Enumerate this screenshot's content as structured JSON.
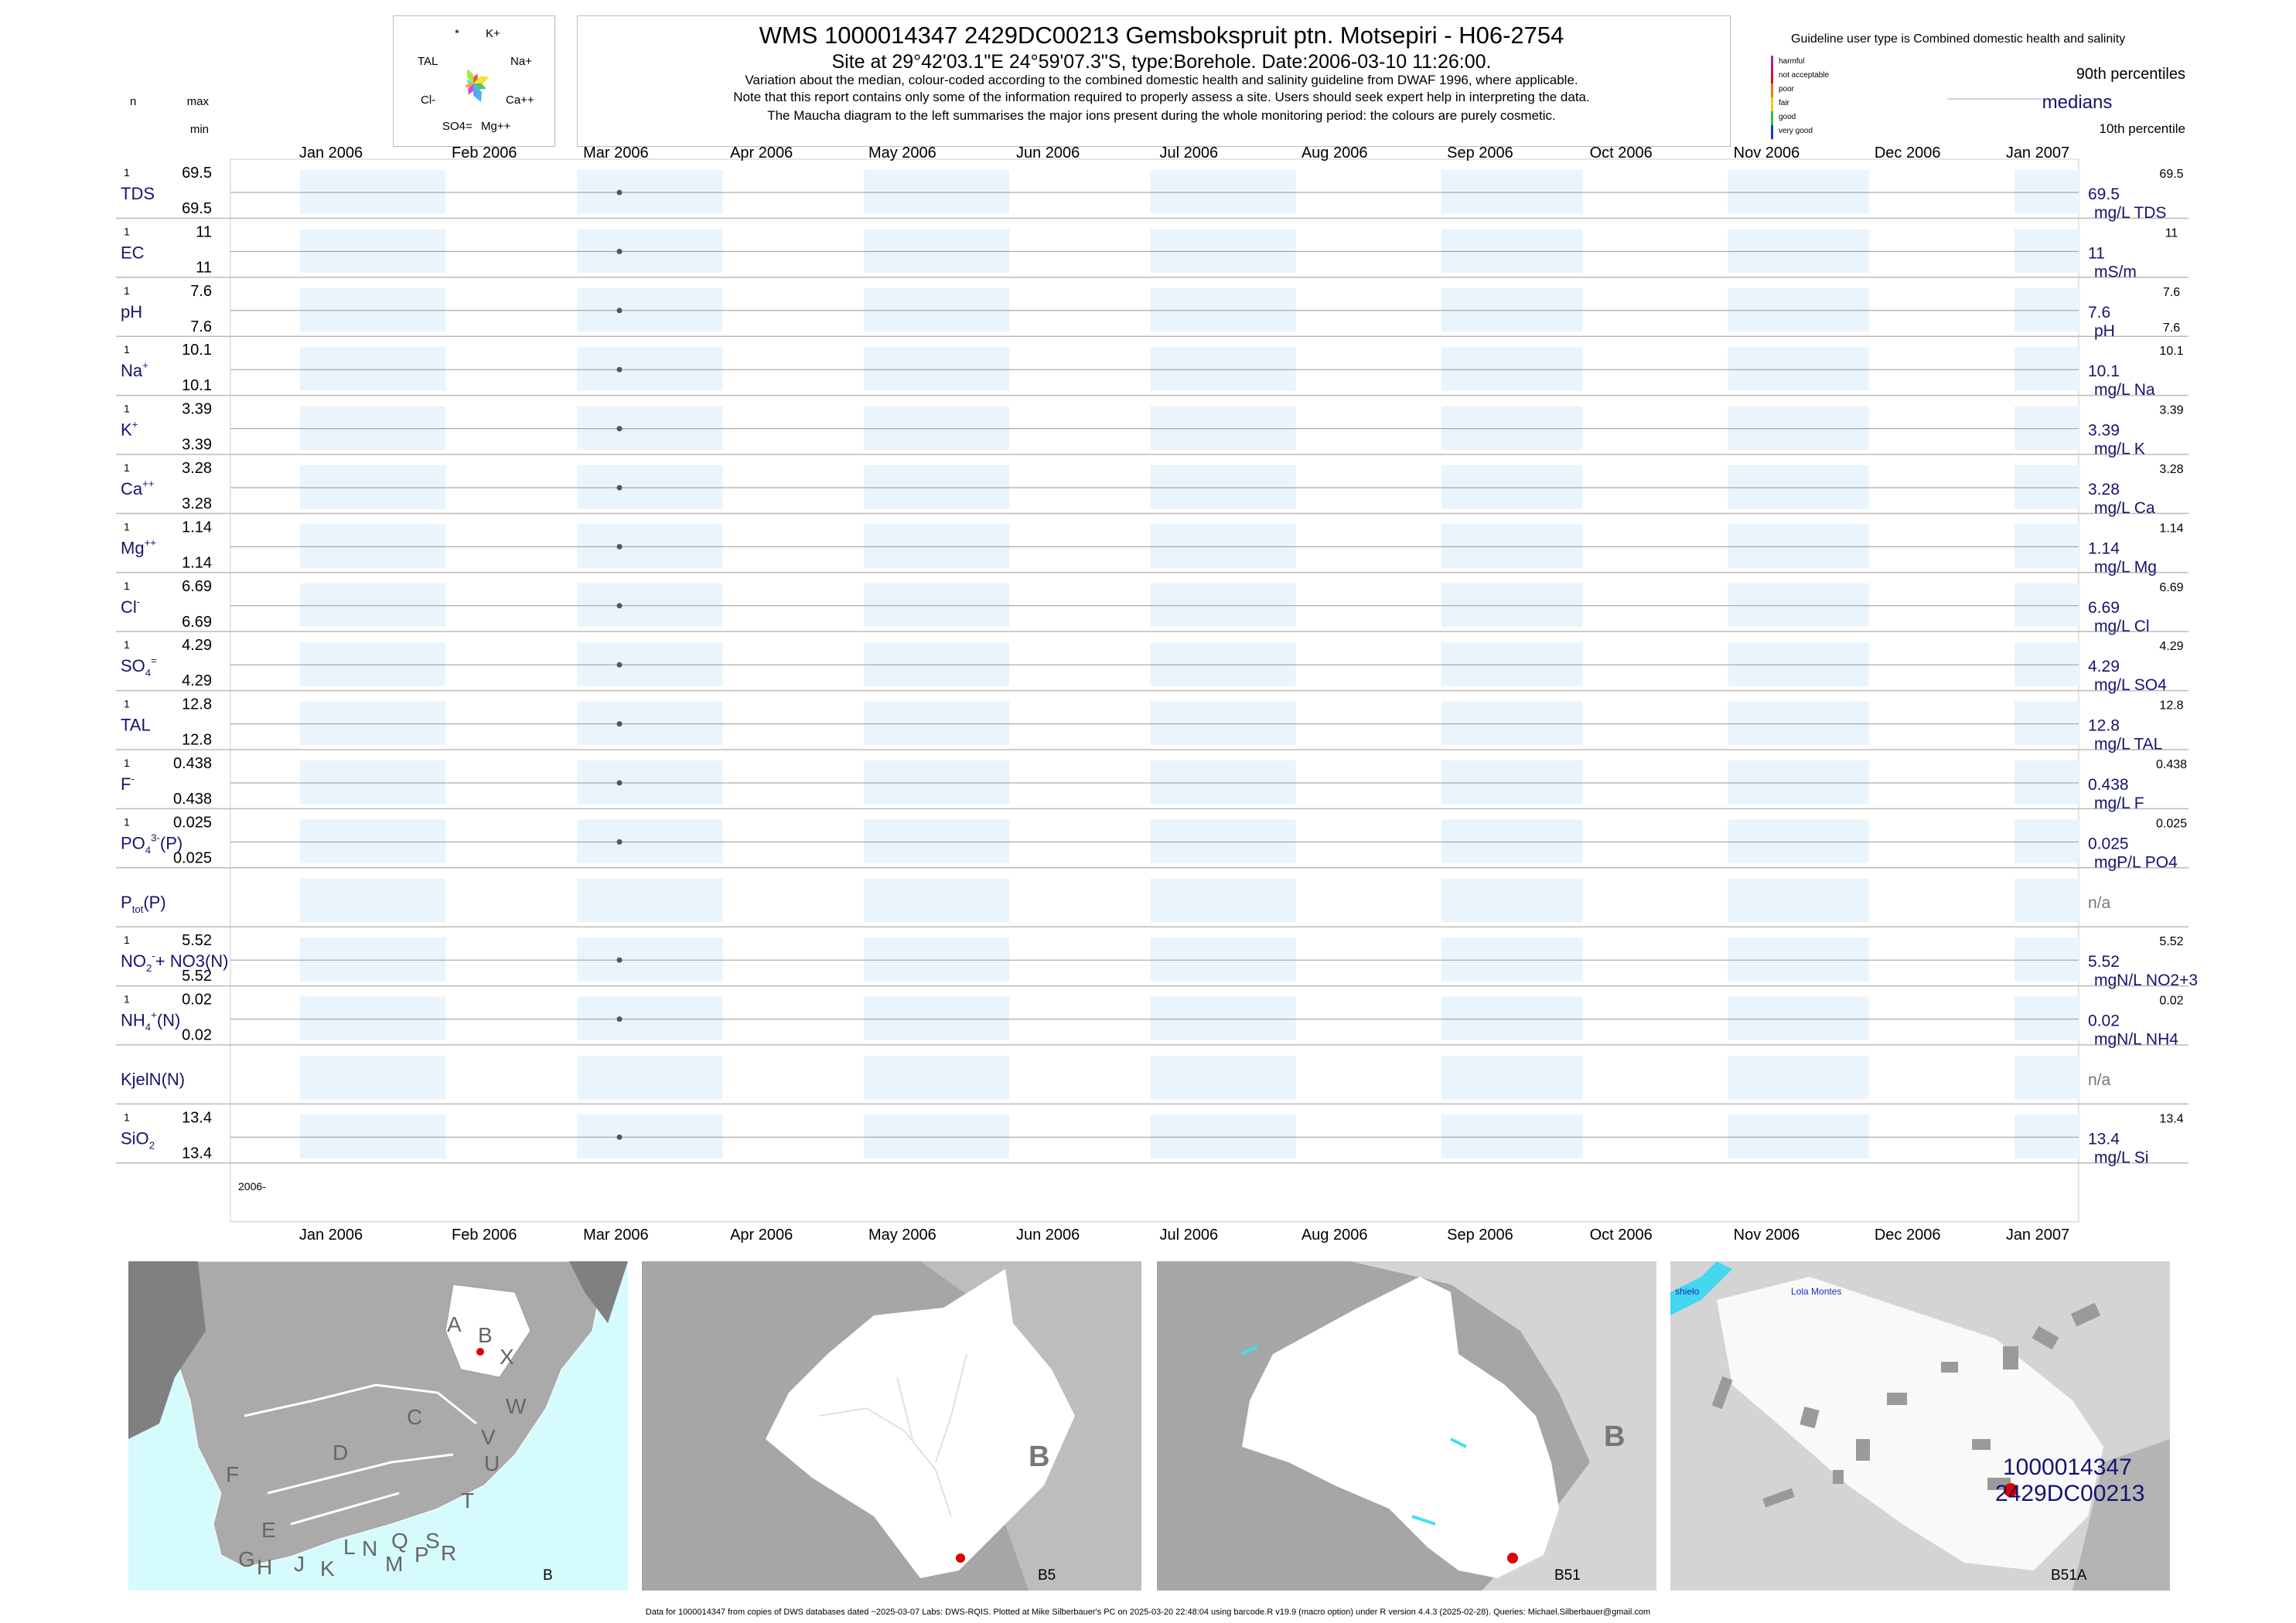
{
  "header": {
    "title": "WMS 1000014347 2429DC00213 Gemsbokspruit ptn. Motsepiri - H06-2754",
    "subtitle": "Site at 29°42'03.1\"E 24°59'07.3\"S, type:Borehole. Date:2006-03-10 11:26:00.",
    "note1": "Variation about the median,  colour-coded according to the combined domestic health and salinity guideline from DWAF 1996, where applicable.",
    "note2": "Note that this report contains only some of the information required to properly assess a site. Users should seek expert help in interpreting the data.",
    "note3": "The Maucha diagram to the left summarises the major ions present during the whole monitoring period: the colours are purely cosmetic."
  },
  "col_labels": {
    "n": "n",
    "max": "max",
    "min": "min"
  },
  "maucha": {
    "labels": [
      "*",
      "K+",
      "TAL",
      "Na+",
      "Cl-",
      "Ca++",
      "SO4=",
      "Mg++"
    ]
  },
  "legend": {
    "title": "Guideline user type is Combined domestic health and salinity",
    "classes": [
      {
        "label": "harmful",
        "color": "#9c2a8a"
      },
      {
        "label": "not acceptable",
        "color": "#e0102a"
      },
      {
        "label": "poor",
        "color": "#f07a10"
      },
      {
        "label": "fair",
        "color": "#f0c814"
      },
      {
        "label": "good",
        "color": "#3ab84a"
      },
      {
        "label": "very good",
        "color": "#1a3cc8"
      }
    ],
    "p90": "90th percentiles",
    "median": "medians",
    "p10": "10th percentile"
  },
  "chart_data": {
    "type": "scatter",
    "x_axis_months": [
      "Jan 2006",
      "Feb 2006",
      "Mar 2006",
      "Apr 2006",
      "May 2006",
      "Jun 2006",
      "Jul 2006",
      "Aug 2006",
      "Sep 2006",
      "Oct 2006",
      "Nov 2006",
      "Dec 2006",
      "Jan 2007"
    ],
    "xlim": [
      "2006-01-01",
      "2007-01-15"
    ],
    "sample_date": "2006-03-10",
    "year_label": "2006-",
    "series": [
      {
        "name": "TDS",
        "n": "1",
        "max": "69.5",
        "min": "69.5",
        "median": "69.5",
        "unit": "mg/L TDS",
        "p90": "69.5",
        "p10": ""
      },
      {
        "name": "EC",
        "n": "1",
        "max": "11",
        "min": "11",
        "median": "11",
        "unit": "mS/m",
        "p90": "11",
        "p10": ""
      },
      {
        "name": "pH",
        "n": "1",
        "max": "7.6",
        "min": "7.6",
        "median": "7.6",
        "unit": "pH",
        "p90": "7.6",
        "p10": "7.6"
      },
      {
        "name": "Na",
        "sup": "+",
        "n": "1",
        "max": "10.1",
        "min": "10.1",
        "median": "10.1",
        "unit": "mg/L Na",
        "p90": "10.1",
        "p10": ""
      },
      {
        "name": "K",
        "sup": "+",
        "n": "1",
        "max": "3.39",
        "min": "3.39",
        "median": "3.39",
        "unit": "mg/L K",
        "p90": "3.39",
        "p10": ""
      },
      {
        "name": "Ca",
        "sup": "++",
        "n": "1",
        "max": "3.28",
        "min": "3.28",
        "median": "3.28",
        "unit": "mg/L Ca",
        "p90": "3.28",
        "p10": ""
      },
      {
        "name": "Mg",
        "sup": "++",
        "n": "1",
        "max": "1.14",
        "min": "1.14",
        "median": "1.14",
        "unit": "mg/L Mg",
        "p90": "1.14",
        "p10": ""
      },
      {
        "name": "Cl",
        "sup": "-",
        "n": "1",
        "max": "6.69",
        "min": "6.69",
        "median": "6.69",
        "unit": "mg/L Cl",
        "p90": "6.69",
        "p10": ""
      },
      {
        "name": "SO",
        "sub": "4",
        "sup": "=",
        "n": "1",
        "max": "4.29",
        "min": "4.29",
        "median": "4.29",
        "unit": "mg/L SO4",
        "p90": "4.29",
        "p10": ""
      },
      {
        "name": "TAL",
        "n": "1",
        "max": "12.8",
        "min": "12.8",
        "median": "12.8",
        "unit": "mg/L TAL",
        "p90": "12.8",
        "p10": ""
      },
      {
        "name": "F",
        "sup": "-",
        "n": "1",
        "max": "0.438",
        "min": "0.438",
        "median": "0.438",
        "unit": "mg/L F",
        "p90": "0.438",
        "p10": ""
      },
      {
        "name": "PO",
        "sub": "4",
        "sup": "3-",
        "tail": "(P)",
        "n": "1",
        "max": "0.025",
        "min": "0.025",
        "median": "0.025",
        "unit": "mgP/L PO4",
        "p90": "0.025",
        "p10": ""
      },
      {
        "name": "P",
        "sub": "tot",
        "tail": "(P)",
        "n": "",
        "max": "",
        "min": "",
        "median": "n/a",
        "unit": "",
        "p90": "",
        "p10": ""
      },
      {
        "name": "NO",
        "sub": "2",
        "sup": "-",
        "tail": "+ NO3(N)",
        "n": "1",
        "max": "5.52",
        "min": "5.52",
        "median": "5.52",
        "unit": "mgN/L NO2+3",
        "p90": "5.52",
        "p10": ""
      },
      {
        "name": "NH",
        "sub": "4",
        "sup": "+",
        "tail": "(N)",
        "n": "1",
        "max": "0.02",
        "min": "0.02",
        "median": "0.02",
        "unit": "mgN/L NH4",
        "p90": "0.02",
        "p10": ""
      },
      {
        "name": "KjelN(N)",
        "n": "",
        "max": "",
        "min": "",
        "median": "n/a",
        "unit": "",
        "p90": "",
        "p10": ""
      },
      {
        "name": "SiO",
        "sub": "2",
        "n": "1",
        "max": "13.4",
        "min": "13.4",
        "median": "13.4",
        "unit": "mg/L Si",
        "p90": "13.4",
        "p10": ""
      }
    ]
  },
  "maps": [
    {
      "caption": "B",
      "letters": [
        "A",
        "B",
        "X",
        "W",
        "C",
        "V",
        "D",
        "U",
        "T",
        "F",
        "E",
        "S",
        "R",
        "L",
        "N",
        "Q",
        "P",
        "G",
        "H",
        "J",
        "K",
        "M"
      ]
    },
    {
      "caption": "B5",
      "region": "B"
    },
    {
      "caption": "B51",
      "region": "B"
    },
    {
      "caption": "B51A",
      "places": [
        "shielo",
        "Lola Montes"
      ],
      "site_id": "1000014347",
      "site_code": "2429DC00213"
    }
  ],
  "footer": "Data for 1000014347 from copies of DWS databases dated ~2025-03-07 Labs: DWS-RQIS. Plotted at Mike Silberbauer's PC on 2025-03-20 22:48:04 using barcode.R v19.9 (macro option) under R version 4.4.3 (2025-02-28). Queries: Michael.Silberbauer@gmail.com"
}
